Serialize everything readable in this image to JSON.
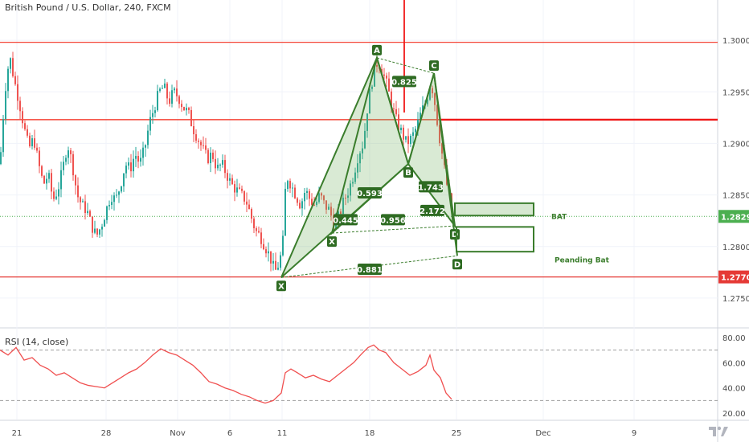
{
  "chart_data": {
    "type": "candlestick",
    "symbol_title": "British Pound / U.S. Dollar, 240, FXCM",
    "ylim": [
      1.2725,
      1.3025
    ],
    "price_ticks": [
      "1.30000",
      "1.29500",
      "1.29000",
      "1.28500",
      "1.28000",
      "1.27500"
    ],
    "price_tick_values": [
      1.3,
      1.295,
      1.29,
      1.285,
      1.28,
      1.275
    ],
    "x_labels": [
      "21",
      "28",
      "Nov",
      "6",
      "11",
      "18",
      "25",
      "Dec",
      "9"
    ],
    "current_price": {
      "label": "1.28292",
      "value": 1.28292,
      "color": "#4caf50"
    },
    "level_price": {
      "label": "1.27705",
      "value": 1.27705,
      "color": "#e53935"
    },
    "horizontal_lines": [
      {
        "value": 1.2998,
        "color": "#f44336"
      },
      {
        "value": 1.2923,
        "color": "#f44336"
      },
      {
        "value": 1.27705,
        "color": "#e53935"
      }
    ],
    "price_path": [
      [
        0,
        1.288
      ],
      [
        6,
        1.295
      ],
      [
        12,
        1.2985
      ],
      [
        18,
        1.296
      ],
      [
        24,
        1.294
      ],
      [
        30,
        1.2915
      ],
      [
        36,
        1.2895
      ],
      [
        42,
        1.2905
      ],
      [
        48,
        1.288
      ],
      [
        54,
        1.286
      ],
      [
        60,
        1.287
      ],
      [
        66,
        1.2845
      ],
      [
        72,
        1.2855
      ],
      [
        78,
        1.2875
      ],
      [
        84,
        1.29
      ],
      [
        90,
        1.288
      ],
      [
        96,
        1.285
      ],
      [
        102,
        1.284
      ],
      [
        108,
        1.2835
      ],
      [
        114,
        1.282
      ],
      [
        120,
        1.281
      ],
      [
        126,
        1.282
      ],
      [
        132,
        1.2835
      ],
      [
        138,
        1.285
      ],
      [
        144,
        1.2845
      ],
      [
        150,
        1.286
      ],
      [
        156,
        1.288
      ],
      [
        162,
        1.2875
      ],
      [
        168,
        1.289
      ],
      [
        174,
        1.288
      ],
      [
        180,
        1.2895
      ],
      [
        186,
        1.292
      ],
      [
        192,
        1.2935
      ],
      [
        198,
        1.295
      ],
      [
        204,
        1.2955
      ],
      [
        210,
        1.294
      ],
      [
        216,
        1.295
      ],
      [
        222,
        1.2945
      ],
      [
        228,
        1.2935
      ],
      [
        234,
        1.293
      ],
      [
        240,
        1.2915
      ],
      [
        246,
        1.2905
      ],
      [
        252,
        1.2895
      ],
      [
        258,
        1.2885
      ],
      [
        264,
        1.289
      ],
      [
        270,
        1.2875
      ],
      [
        276,
        1.288
      ],
      [
        282,
        1.287
      ],
      [
        288,
        1.286
      ],
      [
        294,
        1.2855
      ],
      [
        300,
        1.285
      ],
      [
        306,
        1.2845
      ],
      [
        312,
        1.283
      ],
      [
        318,
        1.2815
      ],
      [
        324,
        1.281
      ],
      [
        330,
        1.28
      ],
      [
        336,
        1.279
      ],
      [
        342,
        1.2775
      ],
      [
        348,
        1.2785
      ],
      [
        352,
        1.2805
      ],
      [
        356,
        1.287
      ],
      [
        362,
        1.286
      ],
      [
        368,
        1.285
      ],
      [
        374,
        1.284
      ],
      [
        380,
        1.2855
      ],
      [
        386,
        1.2845
      ],
      [
        392,
        1.284
      ],
      [
        398,
        1.285
      ],
      [
        404,
        1.284
      ],
      [
        410,
        1.2835
      ],
      [
        416,
        1.282
      ],
      [
        422,
        1.283
      ],
      [
        428,
        1.2845
      ],
      [
        434,
        1.2855
      ],
      [
        440,
        1.287
      ],
      [
        446,
        1.289
      ],
      [
        452,
        1.29
      ],
      [
        458,
        1.294
      ],
      [
        464,
        1.2965
      ],
      [
        470,
        1.298
      ],
      [
        476,
        1.297
      ],
      [
        482,
        1.2955
      ],
      [
        488,
        1.2935
      ],
      [
        494,
        1.292
      ],
      [
        500,
        1.291
      ],
      [
        506,
        1.29
      ],
      [
        512,
        1.2905
      ],
      [
        518,
        1.2915
      ],
      [
        524,
        1.293
      ],
      [
        530,
        1.294
      ],
      [
        536,
        1.296
      ],
      [
        540,
        1.2945
      ],
      [
        546,
        1.291
      ],
      [
        552,
        1.288
      ],
      [
        558,
        1.285
      ],
      [
        564,
        1.2829
      ]
    ],
    "pattern_points": [
      {
        "label": "X",
        "x": 350,
        "y": 1.277
      },
      {
        "label": "A",
        "x": 469,
        "y": 1.2983
      },
      {
        "label": "B",
        "x": 508,
        "y": 1.288
      },
      {
        "label": "C",
        "x": 540,
        "y": 1.2968
      },
      {
        "label": "D",
        "x": 566,
        "y": 1.282
      },
      {
        "label": "X",
        "x": 413,
        "y": 1.2813
      },
      {
        "label": "D",
        "x": 569,
        "y": 1.2791
      }
    ],
    "ratio_labels": [
      {
        "text": "0.825",
        "x": 503,
        "y": 1.296
      },
      {
        "text": "0.593",
        "x": 460,
        "y": 1.2852
      },
      {
        "text": "0.445",
        "x": 430,
        "y": 1.2826
      },
      {
        "text": "0.956",
        "x": 489,
        "y": 1.2826
      },
      {
        "text": "1.743",
        "x": 536,
        "y": 1.2858
      },
      {
        "text": "2.172",
        "x": 538,
        "y": 1.2835
      },
      {
        "text": "0.881",
        "x": 460,
        "y": 1.2778
      }
    ],
    "zones": [
      {
        "name": "BAT",
        "y_top": 1.2842,
        "y_bottom": 1.283,
        "style": "filled"
      },
      {
        "name": "Peanding Bat",
        "y_top": 1.2819,
        "y_bottom": 1.2795,
        "style": "outline"
      }
    ],
    "rsi": {
      "title": "RSI (14, close)",
      "ylim": [
        15,
        85
      ],
      "ticks": [
        "80.00",
        "60.00",
        "40.00",
        "20.00"
      ],
      "tick_values": [
        80,
        60,
        40,
        20
      ],
      "band_values": [
        70,
        30
      ],
      "values": [
        [
          0,
          70
        ],
        [
          10,
          66
        ],
        [
          20,
          72
        ],
        [
          30,
          62
        ],
        [
          40,
          64
        ],
        [
          50,
          58
        ],
        [
          60,
          55
        ],
        [
          70,
          50
        ],
        [
          80,
          52
        ],
        [
          90,
          48
        ],
        [
          100,
          44
        ],
        [
          110,
          42
        ],
        [
          120,
          41
        ],
        [
          130,
          40
        ],
        [
          140,
          44
        ],
        [
          150,
          48
        ],
        [
          160,
          52
        ],
        [
          170,
          55
        ],
        [
          180,
          60
        ],
        [
          190,
          66
        ],
        [
          200,
          71
        ],
        [
          210,
          68
        ],
        [
          220,
          66
        ],
        [
          230,
          62
        ],
        [
          240,
          58
        ],
        [
          250,
          52
        ],
        [
          260,
          45
        ],
        [
          270,
          43
        ],
        [
          280,
          40
        ],
        [
          290,
          38
        ],
        [
          300,
          35
        ],
        [
          310,
          33
        ],
        [
          320,
          30
        ],
        [
          330,
          28
        ],
        [
          340,
          30
        ],
        [
          350,
          36
        ],
        [
          355,
          52
        ],
        [
          362,
          55
        ],
        [
          370,
          52
        ],
        [
          380,
          48
        ],
        [
          390,
          50
        ],
        [
          400,
          47
        ],
        [
          410,
          45
        ],
        [
          420,
          50
        ],
        [
          430,
          55
        ],
        [
          440,
          60
        ],
        [
          450,
          67
        ],
        [
          458,
          72
        ],
        [
          465,
          74
        ],
        [
          472,
          70
        ],
        [
          480,
          68
        ],
        [
          490,
          60
        ],
        [
          500,
          55
        ],
        [
          510,
          50
        ],
        [
          520,
          53
        ],
        [
          530,
          58
        ],
        [
          535,
          66
        ],
        [
          540,
          54
        ],
        [
          548,
          48
        ],
        [
          555,
          36
        ],
        [
          562,
          31
        ]
      ]
    }
  }
}
